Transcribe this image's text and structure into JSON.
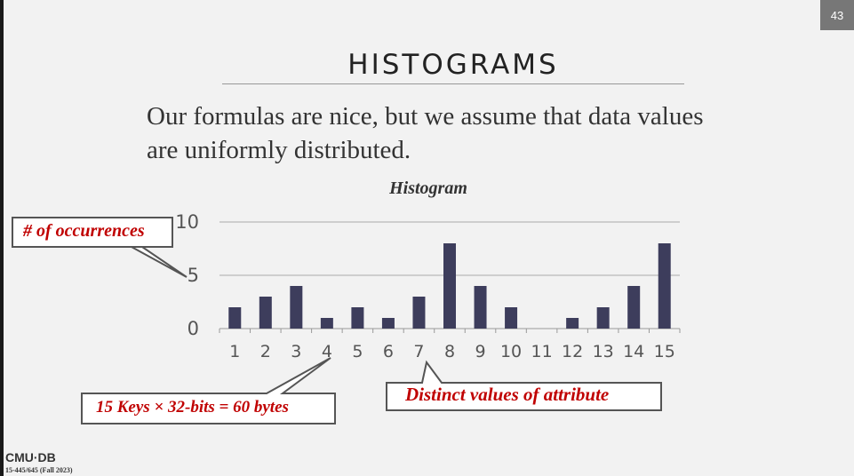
{
  "slide": {
    "number": "43",
    "title": "HISTOGRAMS",
    "body": "Our formulas are nice, but we assume that data values are uniformly distributed.",
    "footer_logo": "CMU·DB",
    "footer_course": "15-445/645 (Fall 2023)"
  },
  "callouts": {
    "occurrences": "# of occurrences",
    "keys": "15 Keys × 32-bits = 60 bytes",
    "distinct": "Distinct values of attribute"
  },
  "chart_data": {
    "type": "bar",
    "title": "Histogram",
    "xlabel": "",
    "ylabel": "",
    "categories": [
      "1",
      "2",
      "3",
      "4",
      "5",
      "6",
      "7",
      "8",
      "9",
      "10",
      "11",
      "12",
      "13",
      "14",
      "15"
    ],
    "values": [
      2,
      3,
      4,
      1,
      2,
      1,
      3,
      8,
      4,
      2,
      0,
      1,
      2,
      4,
      8
    ],
    "ylim": [
      0,
      10
    ],
    "yticks": [
      "0",
      "5",
      "10"
    ],
    "grid": true,
    "bar_color": "#3d3d5c"
  },
  "colors": {
    "callout_text": "#c00000",
    "accent": "#3d3d5c"
  }
}
